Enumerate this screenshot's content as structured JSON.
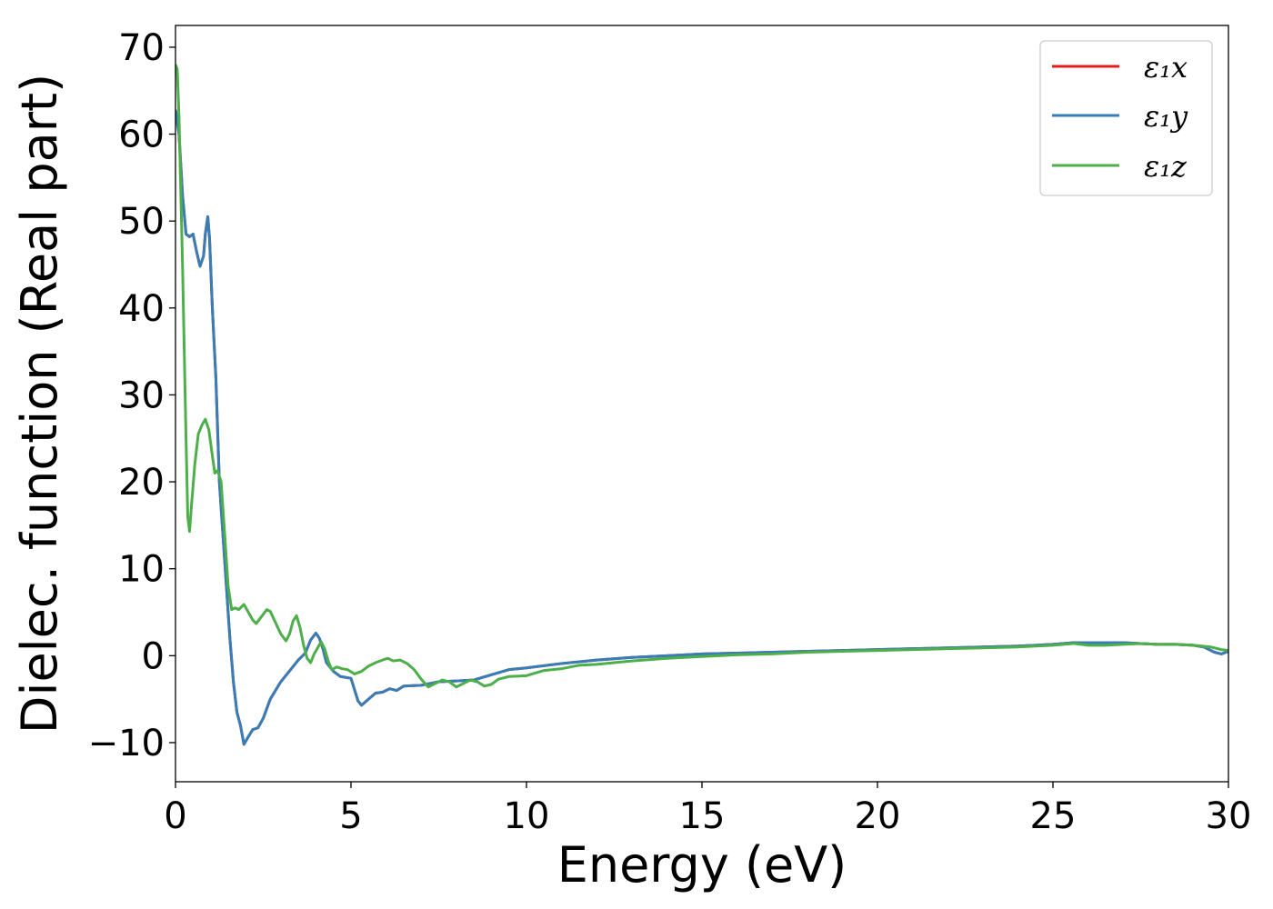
{
  "chart_data": {
    "type": "line",
    "title": "",
    "xlabel": "Energy (eV)",
    "ylabel": "Dielec. function (Real part)",
    "xlim": [
      0,
      30
    ],
    "ylim": [
      -14.5,
      72.5
    ],
    "xticks": [
      0,
      5,
      10,
      15,
      20,
      25,
      30
    ],
    "xtick_labels": [
      "0",
      "5",
      "10",
      "15",
      "20",
      "25",
      "30"
    ],
    "yticks": [
      -10,
      0,
      10,
      20,
      30,
      40,
      50,
      60,
      70
    ],
    "ytick_labels": [
      "−10",
      "0",
      "10",
      "20",
      "30",
      "40",
      "50",
      "60",
      "70"
    ],
    "grid": false,
    "legend_position": "top-right",
    "series": [
      {
        "name": "ε₁x",
        "color": "#e41a1c",
        "points": [
          [
            0,
            62.8
          ],
          [
            0.1,
            60
          ],
          [
            0.2,
            53
          ],
          [
            0.3,
            48.5
          ],
          [
            0.4,
            48.2
          ],
          [
            0.5,
            48.5
          ],
          [
            0.6,
            46.5
          ],
          [
            0.7,
            44.8
          ],
          [
            0.8,
            46
          ],
          [
            0.85,
            48.5
          ],
          [
            0.92,
            50.5
          ],
          [
            0.97,
            48
          ],
          [
            1.05,
            40
          ],
          [
            1.15,
            32
          ],
          [
            1.25,
            20
          ],
          [
            1.4,
            11
          ],
          [
            1.55,
            2
          ],
          [
            1.65,
            -3
          ],
          [
            1.75,
            -6.5
          ],
          [
            1.85,
            -8
          ],
          [
            1.95,
            -10.2
          ],
          [
            2.05,
            -9.5
          ],
          [
            2.2,
            -8.5
          ],
          [
            2.35,
            -8.3
          ],
          [
            2.5,
            -7.2
          ],
          [
            2.7,
            -5
          ],
          [
            3.0,
            -3
          ],
          [
            3.3,
            -1.5
          ],
          [
            3.5,
            -0.5
          ],
          [
            3.7,
            0.3
          ],
          [
            3.85,
            1.8
          ],
          [
            4.0,
            2.6
          ],
          [
            4.1,
            2
          ],
          [
            4.2,
            0.8
          ],
          [
            4.3,
            -0.8
          ],
          [
            4.5,
            -1.8
          ],
          [
            4.7,
            -2.4
          ],
          [
            5.0,
            -2.6
          ],
          [
            5.2,
            -5.2
          ],
          [
            5.3,
            -5.7
          ],
          [
            5.5,
            -5
          ],
          [
            5.7,
            -4.3
          ],
          [
            5.9,
            -4.2
          ],
          [
            6.1,
            -3.8
          ],
          [
            6.3,
            -4
          ],
          [
            6.5,
            -3.5
          ],
          [
            7.0,
            -3.4
          ],
          [
            7.5,
            -3
          ],
          [
            8.0,
            -2.9
          ],
          [
            8.5,
            -2.8
          ],
          [
            9.0,
            -2.2
          ],
          [
            9.5,
            -1.6
          ],
          [
            10,
            -1.4
          ],
          [
            11,
            -0.9
          ],
          [
            12,
            -0.5
          ],
          [
            13,
            -0.2
          ],
          [
            14,
            0
          ],
          [
            15,
            0.2
          ],
          [
            16,
            0.3
          ],
          [
            17,
            0.4
          ],
          [
            18,
            0.5
          ],
          [
            19,
            0.6
          ],
          [
            20,
            0.7
          ],
          [
            21,
            0.8
          ],
          [
            22,
            0.9
          ],
          [
            23,
            1.0
          ],
          [
            24,
            1.1
          ],
          [
            25,
            1.3
          ],
          [
            25.6,
            1.5
          ],
          [
            26,
            1.5
          ],
          [
            27,
            1.5
          ],
          [
            27.5,
            1.4
          ],
          [
            28,
            1.3
          ],
          [
            28.5,
            1.3
          ],
          [
            29,
            1.2
          ],
          [
            29.3,
            1.0
          ],
          [
            29.6,
            0.4
          ],
          [
            29.8,
            0.2
          ],
          [
            30,
            0.5
          ]
        ]
      },
      {
        "name": "ε₁y",
        "color": "#377eb8",
        "points": [
          [
            0,
            62.8
          ],
          [
            0.1,
            60
          ],
          [
            0.2,
            53
          ],
          [
            0.3,
            48.5
          ],
          [
            0.4,
            48.2
          ],
          [
            0.5,
            48.5
          ],
          [
            0.6,
            46.5
          ],
          [
            0.7,
            44.8
          ],
          [
            0.8,
            46
          ],
          [
            0.85,
            48.5
          ],
          [
            0.92,
            50.5
          ],
          [
            0.97,
            48
          ],
          [
            1.05,
            40
          ],
          [
            1.15,
            32
          ],
          [
            1.25,
            20
          ],
          [
            1.4,
            11
          ],
          [
            1.55,
            2
          ],
          [
            1.65,
            -3
          ],
          [
            1.75,
            -6.5
          ],
          [
            1.85,
            -8
          ],
          [
            1.95,
            -10.2
          ],
          [
            2.05,
            -9.5
          ],
          [
            2.2,
            -8.5
          ],
          [
            2.35,
            -8.3
          ],
          [
            2.5,
            -7.2
          ],
          [
            2.7,
            -5
          ],
          [
            3.0,
            -3
          ],
          [
            3.3,
            -1.5
          ],
          [
            3.5,
            -0.5
          ],
          [
            3.7,
            0.3
          ],
          [
            3.85,
            1.8
          ],
          [
            4.0,
            2.6
          ],
          [
            4.1,
            2
          ],
          [
            4.2,
            0.8
          ],
          [
            4.3,
            -0.8
          ],
          [
            4.5,
            -1.8
          ],
          [
            4.7,
            -2.4
          ],
          [
            5.0,
            -2.6
          ],
          [
            5.2,
            -5.2
          ],
          [
            5.3,
            -5.7
          ],
          [
            5.5,
            -5
          ],
          [
            5.7,
            -4.3
          ],
          [
            5.9,
            -4.2
          ],
          [
            6.1,
            -3.8
          ],
          [
            6.3,
            -4
          ],
          [
            6.5,
            -3.5
          ],
          [
            7.0,
            -3.4
          ],
          [
            7.5,
            -3
          ],
          [
            8.0,
            -2.9
          ],
          [
            8.5,
            -2.8
          ],
          [
            9.0,
            -2.2
          ],
          [
            9.5,
            -1.6
          ],
          [
            10,
            -1.4
          ],
          [
            11,
            -0.9
          ],
          [
            12,
            -0.5
          ],
          [
            13,
            -0.2
          ],
          [
            14,
            0
          ],
          [
            15,
            0.2
          ],
          [
            16,
            0.3
          ],
          [
            17,
            0.4
          ],
          [
            18,
            0.5
          ],
          [
            19,
            0.6
          ],
          [
            20,
            0.7
          ],
          [
            21,
            0.8
          ],
          [
            22,
            0.9
          ],
          [
            23,
            1.0
          ],
          [
            24,
            1.1
          ],
          [
            25,
            1.3
          ],
          [
            25.6,
            1.5
          ],
          [
            26,
            1.5
          ],
          [
            27,
            1.5
          ],
          [
            27.5,
            1.4
          ],
          [
            28,
            1.3
          ],
          [
            28.5,
            1.3
          ],
          [
            29,
            1.2
          ],
          [
            29.3,
            1.0
          ],
          [
            29.6,
            0.4
          ],
          [
            29.8,
            0.2
          ],
          [
            30,
            0.5
          ]
        ]
      },
      {
        "name": "ε₁z",
        "color": "#4daf4a",
        "points": [
          [
            0,
            68
          ],
          [
            0.05,
            67.5
          ],
          [
            0.1,
            62
          ],
          [
            0.2,
            45
          ],
          [
            0.3,
            25
          ],
          [
            0.35,
            16
          ],
          [
            0.4,
            14.3
          ],
          [
            0.45,
            17
          ],
          [
            0.55,
            22
          ],
          [
            0.65,
            25.5
          ],
          [
            0.75,
            26.5
          ],
          [
            0.85,
            27.2
          ],
          [
            0.95,
            26
          ],
          [
            1.05,
            23
          ],
          [
            1.12,
            21
          ],
          [
            1.2,
            21.3
          ],
          [
            1.3,
            20
          ],
          [
            1.4,
            14
          ],
          [
            1.5,
            8
          ],
          [
            1.6,
            5.3
          ],
          [
            1.7,
            5.5
          ],
          [
            1.8,
            5.3
          ],
          [
            1.95,
            5.9
          ],
          [
            2.05,
            5.2
          ],
          [
            2.2,
            4.1
          ],
          [
            2.3,
            3.7
          ],
          [
            2.45,
            4.5
          ],
          [
            2.6,
            5.3
          ],
          [
            2.7,
            5.1
          ],
          [
            2.85,
            3.8
          ],
          [
            3.0,
            2.5
          ],
          [
            3.15,
            1.7
          ],
          [
            3.25,
            2.5
          ],
          [
            3.35,
            4
          ],
          [
            3.45,
            4.6
          ],
          [
            3.55,
            3.2
          ],
          [
            3.65,
            1.2
          ],
          [
            3.75,
            -0.3
          ],
          [
            3.85,
            -0.8
          ],
          [
            3.95,
            0.2
          ],
          [
            4.05,
            0.9
          ],
          [
            4.15,
            1.6
          ],
          [
            4.25,
            0.8
          ],
          [
            4.35,
            -0.6
          ],
          [
            4.45,
            -1.6
          ],
          [
            4.6,
            -1.3
          ],
          [
            4.75,
            -1.5
          ],
          [
            4.9,
            -1.6
          ],
          [
            5.1,
            -2.1
          ],
          [
            5.3,
            -1.8
          ],
          [
            5.5,
            -1.2
          ],
          [
            5.7,
            -0.8
          ],
          [
            5.9,
            -0.5
          ],
          [
            6.05,
            -0.3
          ],
          [
            6.2,
            -0.6
          ],
          [
            6.4,
            -0.5
          ],
          [
            6.6,
            -0.9
          ],
          [
            6.8,
            -1.6
          ],
          [
            7.0,
            -2.7
          ],
          [
            7.2,
            -3.6
          ],
          [
            7.4,
            -3.2
          ],
          [
            7.6,
            -2.8
          ],
          [
            7.8,
            -3.0
          ],
          [
            8.0,
            -3.6
          ],
          [
            8.2,
            -3.2
          ],
          [
            8.4,
            -2.8
          ],
          [
            8.6,
            -3.0
          ],
          [
            8.8,
            -3.5
          ],
          [
            9.0,
            -3.3
          ],
          [
            9.2,
            -2.7
          ],
          [
            9.5,
            -2.4
          ],
          [
            10,
            -2.3
          ],
          [
            10.5,
            -1.7
          ],
          [
            11,
            -1.5
          ],
          [
            11.5,
            -1.1
          ],
          [
            12,
            -1.0
          ],
          [
            13,
            -0.6
          ],
          [
            14,
            -0.3
          ],
          [
            15,
            -0.1
          ],
          [
            16,
            0.1
          ],
          [
            17,
            0.2
          ],
          [
            18,
            0.4
          ],
          [
            19,
            0.5
          ],
          [
            20,
            0.6
          ],
          [
            21,
            0.7
          ],
          [
            22,
            0.8
          ],
          [
            23,
            0.9
          ],
          [
            24,
            1.0
          ],
          [
            25,
            1.2
          ],
          [
            25.6,
            1.4
          ],
          [
            26,
            1.2
          ],
          [
            26.5,
            1.2
          ],
          [
            27,
            1.3
          ],
          [
            27.5,
            1.4
          ],
          [
            28,
            1.3
          ],
          [
            28.5,
            1.3
          ],
          [
            29,
            1.2
          ],
          [
            29.5,
            1.0
          ],
          [
            29.8,
            0.7
          ],
          [
            30,
            0.6
          ]
        ]
      }
    ]
  }
}
